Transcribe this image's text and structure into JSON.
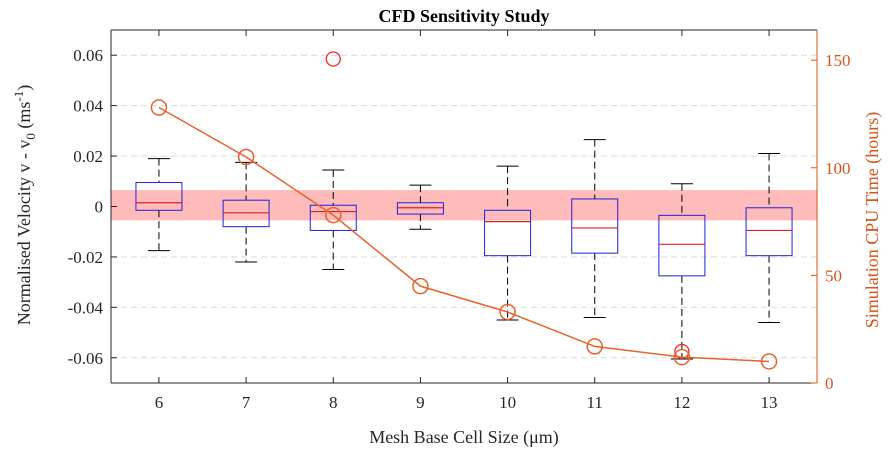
{
  "chart_data": {
    "type": "box",
    "title": "CFD Sensitivity Study",
    "xlabel": "Mesh Base Cell Size (μm)",
    "ylabel_left": {
      "main": "Normalised Velocity v - v",
      "sub": "0",
      "unit_open": " (ms",
      "unit_sup": "-1",
      "unit_close": ")"
    },
    "ylabel_right": "Simulation CPU Time (hours)",
    "categories": [
      "6",
      "7",
      "8",
      "9",
      "10",
      "11",
      "12",
      "13"
    ],
    "y_left_lim": [
      -0.07,
      0.07
    ],
    "y_left_ticks": [
      "-0.06",
      "-0.04",
      "-0.02",
      "0",
      "0.02",
      "0.04",
      "0.06"
    ],
    "y_left_tick_values": [
      -0.06,
      -0.04,
      -0.02,
      0,
      0.02,
      0.04,
      0.06
    ],
    "y_right_lim": [
      0,
      164
    ],
    "y_right_ticks": [
      "0",
      "50",
      "100",
      "150"
    ],
    "y_right_tick_values": [
      0,
      50,
      100,
      150
    ],
    "grid": true,
    "band": {
      "low": -0.0055,
      "high": 0.0065,
      "color": "#ffb3b3"
    },
    "boxes": [
      {
        "x": 6,
        "whisker_low": -0.0175,
        "q1": -0.0015,
        "median": 0.0015,
        "q3": 0.0095,
        "whisker_high": 0.019,
        "outliers": []
      },
      {
        "x": 7,
        "whisker_low": -0.022,
        "q1": -0.008,
        "median": -0.0025,
        "q3": 0.0025,
        "whisker_high": 0.0175,
        "outliers": []
      },
      {
        "x": 8,
        "whisker_low": -0.025,
        "q1": -0.0095,
        "median": -0.002,
        "q3": 0.0005,
        "whisker_high": 0.0145,
        "outliers": [
          0.0585
        ]
      },
      {
        "x": 9,
        "whisker_low": -0.009,
        "q1": -0.003,
        "median": -0.0005,
        "q3": 0.0015,
        "whisker_high": 0.0085,
        "outliers": []
      },
      {
        "x": 10,
        "whisker_low": -0.045,
        "q1": -0.0195,
        "median": -0.006,
        "q3": -0.0015,
        "whisker_high": 0.016,
        "outliers": []
      },
      {
        "x": 11,
        "whisker_low": -0.044,
        "q1": -0.0185,
        "median": -0.0085,
        "q3": 0.003,
        "whisker_high": 0.0265,
        "outliers": []
      },
      {
        "x": 12,
        "whisker_low": -0.0605,
        "q1": -0.0275,
        "median": -0.015,
        "q3": -0.0035,
        "whisker_high": 0.009,
        "outliers": [
          -0.0575
        ]
      },
      {
        "x": 13,
        "whisker_low": -0.046,
        "q1": -0.0195,
        "median": -0.0095,
        "q3": -0.0005,
        "whisker_high": 0.021,
        "outliers": []
      }
    ],
    "cpu_series": {
      "x": [
        6,
        7,
        8,
        9,
        10,
        11,
        12,
        13
      ],
      "values": [
        128,
        105,
        78,
        45,
        33,
        17,
        12,
        10
      ]
    },
    "colors": {
      "box": "#2020e0",
      "median": "#e02020",
      "whisker": "#000000",
      "outlier": "#ff2020",
      "cpu_line": "#e8622c",
      "right_axis": "#d95319",
      "axis": "#262626",
      "grid": "#d9d9d9"
    }
  }
}
